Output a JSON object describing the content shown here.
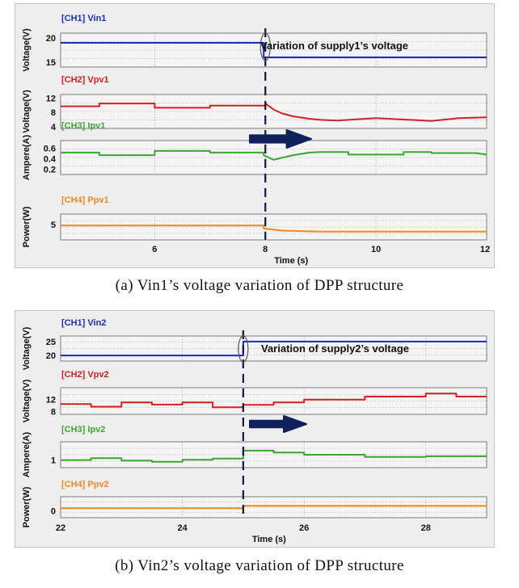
{
  "chart_data": [
    {
      "type": "line",
      "caption": "(a) Vin1’s voltage variation of DPP structure",
      "annotation": "Variation of supply1’s voltage",
      "xlabel": "Time (s)",
      "xlim": [
        4.3,
        12
      ],
      "xticks": [
        6,
        8,
        10,
        12
      ],
      "event_time": 8,
      "channels": [
        {
          "title": "[CH1] Vin1",
          "ylabel": "Voltage(V)",
          "color": "#1a2bc8",
          "ylim": [
            14,
            21
          ],
          "yticks": [
            15,
            20
          ],
          "x": [
            4.3,
            7.97,
            7.97,
            12
          ],
          "y": [
            19,
            19,
            16,
            16
          ]
        },
        {
          "title": "[CH2] Vpv1",
          "ylabel": "Voltage(V)",
          "color": "#d42020",
          "ylim": [
            3.5,
            13
          ],
          "yticks": [
            4,
            8,
            12
          ],
          "x": [
            4.3,
            5.0,
            5.0,
            6.0,
            6.0,
            7.0,
            7.0,
            8.0,
            8.0,
            8.15,
            8.3,
            8.5,
            8.8,
            9.0,
            9.3,
            9.3,
            10.0,
            10.0,
            11.0,
            11.0,
            11.5,
            12
          ],
          "y": [
            9.7,
            9.7,
            10.5,
            10.5,
            9.3,
            9.3,
            9.9,
            9.9,
            10.5,
            8.8,
            7.7,
            6.9,
            6.2,
            5.9,
            5.7,
            5.7,
            6.4,
            6.4,
            5.6,
            5.6,
            6.4,
            6.6
          ]
        },
        {
          "title": "[CH3] Ipv1",
          "ylabel": "Ampere(A)",
          "color": "#3aa62f",
          "ylim": [
            0.1,
            0.75
          ],
          "yticks": [
            0.2,
            0.4,
            0.6
          ],
          "x": [
            4.3,
            5.0,
            5.0,
            6.0,
            6.0,
            7.0,
            7.0,
            7.97,
            7.97,
            8.15,
            8.3,
            8.5,
            8.8,
            9.0,
            9.5,
            9.5,
            10.5,
            10.5,
            11.0,
            11.0,
            11.8,
            12
          ],
          "y": [
            0.52,
            0.52,
            0.47,
            0.47,
            0.55,
            0.55,
            0.52,
            0.52,
            0.47,
            0.38,
            0.42,
            0.47,
            0.52,
            0.53,
            0.53,
            0.48,
            0.48,
            0.53,
            0.53,
            0.51,
            0.51,
            0.48
          ]
        },
        {
          "title": "[CH4] Ppv1",
          "ylabel": "Power(W)",
          "color": "#f08a1c",
          "ylim": [
            3.5,
            6
          ],
          "yticks": [
            5
          ],
          "x": [
            4.3,
            7.97,
            7.97,
            8.3,
            9.0,
            12
          ],
          "y": [
            4.9,
            4.9,
            4.6,
            4.4,
            4.3,
            4.3
          ]
        }
      ]
    },
    {
      "type": "line",
      "caption": "(b) Vin2’s voltage variation of DPP structure",
      "annotation": "Variation of supply2’s voltage",
      "xlabel": "Time (s)",
      "xlim": [
        22,
        29
      ],
      "xticks": [
        22,
        24,
        26,
        28
      ],
      "event_time": 25,
      "channels": [
        {
          "title": "[CH1] Vin2",
          "ylabel": "Voltage(V)",
          "color": "#1a2bc8",
          "ylim": [
            18,
            27
          ],
          "yticks": [
            20,
            25
          ],
          "x": [
            22,
            25,
            25,
            29
          ],
          "y": [
            20,
            20,
            25,
            25
          ]
        },
        {
          "title": "[CH2] Vpv2",
          "ylabel": "Voltage(V)",
          "color": "#d42020",
          "ylim": [
            7,
            16
          ],
          "yticks": [
            8,
            12
          ],
          "x": [
            22,
            22.5,
            22.5,
            23.0,
            23.0,
            23.5,
            23.5,
            24.0,
            24.0,
            24.5,
            24.5,
            25.0,
            25.0,
            25.5,
            25.5,
            26.0,
            26.0,
            27.0,
            27.0,
            28.0,
            28.0,
            28.5,
            28.5,
            29
          ],
          "y": [
            10.5,
            10.5,
            9.6,
            9.6,
            11.0,
            11.0,
            10.3,
            10.3,
            11.0,
            11.0,
            9.4,
            9.4,
            10.2,
            10.2,
            11.0,
            11.0,
            12.0,
            12.0,
            13.0,
            13.0,
            14.0,
            14.0,
            13.0,
            13.0
          ]
        },
        {
          "title": "[CH3] Ipv2",
          "ylabel": "Ampere(A)",
          "color": "#3aa62f",
          "ylim": [
            0.5,
            2.2
          ],
          "yticks": [
            1
          ],
          "x": [
            22,
            22.5,
            22.5,
            23.0,
            23.0,
            23.5,
            23.5,
            24.0,
            24.0,
            24.5,
            24.5,
            25.0,
            25.0,
            25.5,
            25.5,
            26.0,
            26.0,
            27.0,
            27.0,
            28.0,
            28.0,
            29
          ],
          "y": [
            1.0,
            1.0,
            1.12,
            1.12,
            0.97,
            0.97,
            0.88,
            0.88,
            1.02,
            1.02,
            1.1,
            1.1,
            1.62,
            1.62,
            1.5,
            1.5,
            1.35,
            1.35,
            1.2,
            1.2,
            1.25,
            1.25
          ]
        },
        {
          "title": "[CH4] Ppv2",
          "ylabel": "Power(W)",
          "color": "#f08a1c",
          "ylim": [
            -1,
            2
          ],
          "yticks": [
            0
          ],
          "x": [
            22,
            25,
            25,
            29
          ],
          "y": [
            0.35,
            0.35,
            0.7,
            0.7
          ]
        }
      ]
    }
  ]
}
